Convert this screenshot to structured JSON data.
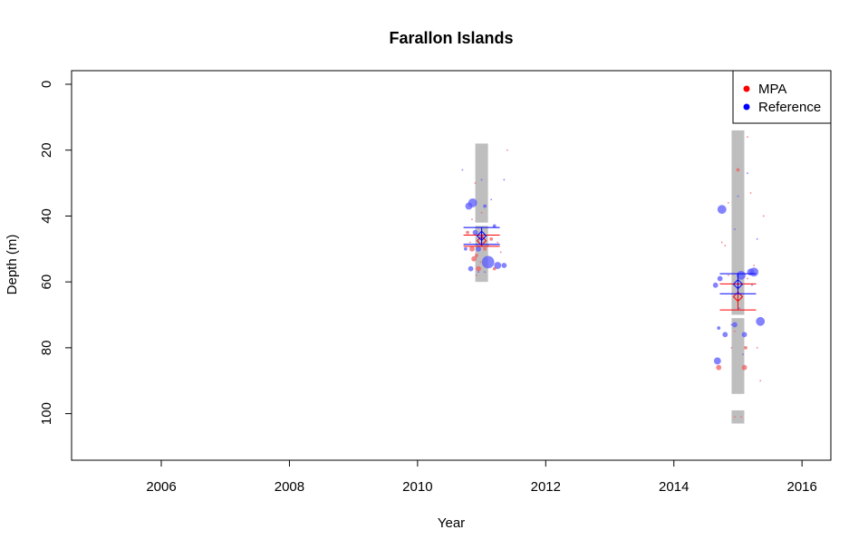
{
  "chart_data": {
    "type": "scatter",
    "title": "Farallon Islands",
    "xlabel": "Year",
    "ylabel": "Depth (m)",
    "xlim": [
      2004.6,
      2016.45
    ],
    "ylim": [
      0,
      115
    ],
    "y_inverted": true,
    "x_ticks": [
      2006,
      2008,
      2010,
      2012,
      2014,
      2016
    ],
    "y_ticks": [
      0,
      20,
      40,
      60,
      80,
      100
    ],
    "legend": {
      "position": "top-right",
      "entries": [
        {
          "label": "MPA",
          "color": "#ff0000"
        },
        {
          "label": "Reference",
          "color": "#0000ff"
        }
      ]
    },
    "colors": {
      "mpa": "#ff0000",
      "mpa_points": "#f06060",
      "reference": "#0000ff",
      "reference_points": "#5a5aff",
      "depth_range_bar": "#bebebe"
    },
    "depth_range_bars": [
      {
        "year": 2011,
        "segments": [
          [
            18,
            42
          ],
          [
            43,
            60
          ]
        ]
      },
      {
        "year": 2015,
        "segments": [
          [
            14,
            70
          ],
          [
            71,
            94
          ],
          [
            99,
            103
          ]
        ]
      }
    ],
    "summary": [
      {
        "group": "MPA",
        "year": 2011,
        "mean_depth": 47.5,
        "lower": 45.8,
        "upper": 49.2
      },
      {
        "group": "Reference",
        "year": 2011,
        "mean_depth": 46.0,
        "lower": 43.5,
        "upper": 48.6
      },
      {
        "group": "MPA",
        "year": 2015,
        "mean_depth": 64.5,
        "lower": 60.6,
        "upper": 68.5
      },
      {
        "group": "Reference",
        "year": 2015,
        "mean_depth": 60.7,
        "lower": 57.5,
        "upper": 63.6
      }
    ],
    "series": [
      {
        "name": "MPA",
        "points": [
          {
            "x": 2010.78,
            "y": 45,
            "s": 2
          },
          {
            "x": 2010.82,
            "y": 48,
            "s": 1
          },
          {
            "x": 2010.85,
            "y": 50,
            "s": 3
          },
          {
            "x": 2010.88,
            "y": 53,
            "s": 3
          },
          {
            "x": 2010.92,
            "y": 52,
            "s": 2
          },
          {
            "x": 2010.95,
            "y": 56,
            "s": 3
          },
          {
            "x": 2010.98,
            "y": 54,
            "s": 1
          },
          {
            "x": 2011.05,
            "y": 50,
            "s": 2
          },
          {
            "x": 2011.1,
            "y": 49,
            "s": 1
          },
          {
            "x": 2011.15,
            "y": 47,
            "s": 2
          },
          {
            "x": 2011.2,
            "y": 56,
            "s": 2
          },
          {
            "x": 2011.25,
            "y": 48,
            "s": 1
          },
          {
            "x": 2011.3,
            "y": 51,
            "s": 1
          },
          {
            "x": 2011.4,
            "y": 20,
            "s": 1
          },
          {
            "x": 2010.9,
            "y": 30,
            "s": 1
          },
          {
            "x": 2010.85,
            "y": 41,
            "s": 1
          },
          {
            "x": 2011.0,
            "y": 39,
            "s": 1
          },
          {
            "x": 2010.92,
            "y": 58,
            "s": 1
          },
          {
            "x": 2014.7,
            "y": 86,
            "s": 3
          },
          {
            "x": 2014.75,
            "y": 48,
            "s": 1
          },
          {
            "x": 2014.8,
            "y": 49,
            "s": 1
          },
          {
            "x": 2014.85,
            "y": 58,
            "s": 1
          },
          {
            "x": 2014.9,
            "y": 80,
            "s": 1
          },
          {
            "x": 2014.95,
            "y": 75,
            "s": 1
          },
          {
            "x": 2015.0,
            "y": 26,
            "s": 2
          },
          {
            "x": 2015.05,
            "y": 65,
            "s": 1
          },
          {
            "x": 2015.1,
            "y": 86,
            "s": 3
          },
          {
            "x": 2015.12,
            "y": 80,
            "s": 2
          },
          {
            "x": 2015.15,
            "y": 59,
            "s": 1
          },
          {
            "x": 2015.2,
            "y": 33,
            "s": 1
          },
          {
            "x": 2015.3,
            "y": 80,
            "s": 1
          },
          {
            "x": 2015.35,
            "y": 90,
            "s": 1
          },
          {
            "x": 2015.4,
            "y": 40,
            "s": 1
          },
          {
            "x": 2015.25,
            "y": 55,
            "s": 1
          },
          {
            "x": 2014.95,
            "y": 101,
            "s": 1
          },
          {
            "x": 2015.05,
            "y": 101,
            "s": 1
          },
          {
            "x": 2014.85,
            "y": 36,
            "s": 1
          },
          {
            "x": 2015.15,
            "y": 16,
            "s": 1
          }
        ]
      },
      {
        "name": "Reference",
        "points": [
          {
            "x": 2010.7,
            "y": 26,
            "s": 1
          },
          {
            "x": 2010.75,
            "y": 50,
            "s": 2
          },
          {
            "x": 2010.8,
            "y": 37,
            "s": 4
          },
          {
            "x": 2010.83,
            "y": 56,
            "s": 3
          },
          {
            "x": 2010.86,
            "y": 36,
            "s": 5
          },
          {
            "x": 2010.9,
            "y": 45,
            "s": 3
          },
          {
            "x": 2010.95,
            "y": 50,
            "s": 3
          },
          {
            "x": 2011.0,
            "y": 29,
            "s": 1
          },
          {
            "x": 2011.05,
            "y": 37,
            "s": 2
          },
          {
            "x": 2011.1,
            "y": 54,
            "s": 7
          },
          {
            "x": 2011.15,
            "y": 35,
            "s": 1
          },
          {
            "x": 2011.2,
            "y": 43,
            "s": 2
          },
          {
            "x": 2011.25,
            "y": 55,
            "s": 4
          },
          {
            "x": 2011.35,
            "y": 55,
            "s": 3
          },
          {
            "x": 2011.35,
            "y": 29,
            "s": 1
          },
          {
            "x": 2010.95,
            "y": 57,
            "s": 1
          },
          {
            "x": 2011.05,
            "y": 57,
            "s": 1
          },
          {
            "x": 2014.65,
            "y": 61,
            "s": 3
          },
          {
            "x": 2014.68,
            "y": 84,
            "s": 4
          },
          {
            "x": 2014.7,
            "y": 74,
            "s": 2
          },
          {
            "x": 2014.72,
            "y": 59,
            "s": 3
          },
          {
            "x": 2014.75,
            "y": 38,
            "s": 5
          },
          {
            "x": 2014.8,
            "y": 76,
            "s": 3
          },
          {
            "x": 2014.9,
            "y": 73,
            "s": 1
          },
          {
            "x": 2014.95,
            "y": 73,
            "s": 3
          },
          {
            "x": 2015.0,
            "y": 34,
            "s": 1
          },
          {
            "x": 2015.05,
            "y": 58,
            "s": 5
          },
          {
            "x": 2015.08,
            "y": 82,
            "s": 1
          },
          {
            "x": 2015.1,
            "y": 76,
            "s": 3
          },
          {
            "x": 2015.15,
            "y": 27,
            "s": 1
          },
          {
            "x": 2015.2,
            "y": 57,
            "s": 4
          },
          {
            "x": 2015.25,
            "y": 57,
            "s": 5
          },
          {
            "x": 2015.3,
            "y": 47,
            "s": 1
          },
          {
            "x": 2015.35,
            "y": 72,
            "s": 5
          },
          {
            "x": 2014.95,
            "y": 44,
            "s": 1
          },
          {
            "x": 2015.02,
            "y": 68,
            "s": 1
          },
          {
            "x": 2015.22,
            "y": 61,
            "s": 1
          }
        ]
      }
    ]
  }
}
